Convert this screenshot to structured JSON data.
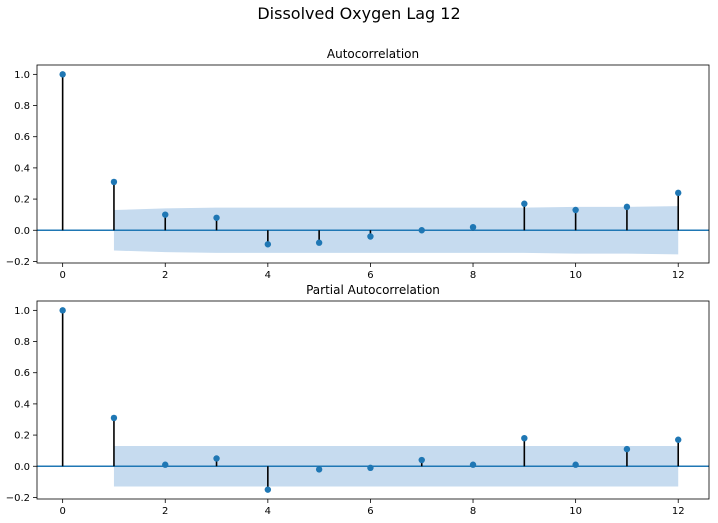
{
  "figure": {
    "title": "Dissolved Oxygen Lag 12"
  },
  "chart_data": [
    {
      "type": "stem",
      "title": "Autocorrelation",
      "xlim": [
        -0.5,
        12.6
      ],
      "ylim": [
        -0.21,
        1.06
      ],
      "xticks": [
        "0",
        "2",
        "4",
        "6",
        "8",
        "10",
        "12"
      ],
      "yticks": [
        "1.0",
        "0.8",
        "0.6",
        "0.4",
        "0.2",
        "0.0",
        "−0.2"
      ],
      "lags": [
        0,
        1,
        2,
        3,
        4,
        5,
        6,
        7,
        8,
        9,
        10,
        11,
        12
      ],
      "values": [
        1.0,
        0.31,
        0.1,
        0.08,
        -0.09,
        -0.08,
        -0.04,
        0.0,
        0.02,
        0.17,
        0.13,
        0.15,
        0.24
      ],
      "confint": {
        "x": [
          1,
          2,
          3,
          4,
          5,
          6,
          7,
          8,
          9,
          10,
          11,
          12
        ],
        "upper": [
          0.13,
          0.14,
          0.145,
          0.145,
          0.145,
          0.145,
          0.145,
          0.145,
          0.145,
          0.15,
          0.15,
          0.155
        ],
        "lower": [
          -0.13,
          -0.14,
          -0.145,
          -0.145,
          -0.145,
          -0.145,
          -0.145,
          -0.145,
          -0.145,
          -0.15,
          -0.15,
          -0.155
        ]
      },
      "colors": {
        "marker": "#1f77b4",
        "stem": "#000000",
        "band": "#c6dbef",
        "zeroline": "#1f77b4"
      }
    },
    {
      "type": "stem",
      "title": "Partial Autocorrelation",
      "xlim": [
        -0.5,
        12.6
      ],
      "ylim": [
        -0.21,
        1.06
      ],
      "xticks": [
        "0",
        "2",
        "4",
        "6",
        "8",
        "10",
        "12"
      ],
      "yticks": [
        "1.0",
        "0.8",
        "0.6",
        "0.4",
        "0.2",
        "0.0",
        "−0.2"
      ],
      "lags": [
        0,
        1,
        2,
        3,
        4,
        5,
        6,
        7,
        8,
        9,
        10,
        11,
        12
      ],
      "values": [
        1.0,
        0.31,
        0.01,
        0.05,
        -0.15,
        -0.02,
        -0.01,
        0.04,
        0.01,
        0.18,
        0.01,
        0.11,
        0.17
      ],
      "confint": {
        "x": [
          1,
          12
        ],
        "upper": [
          0.13,
          0.13
        ],
        "lower": [
          -0.13,
          -0.13
        ]
      },
      "colors": {
        "marker": "#1f77b4",
        "stem": "#000000",
        "band": "#c6dbef",
        "zeroline": "#1f77b4"
      }
    }
  ]
}
